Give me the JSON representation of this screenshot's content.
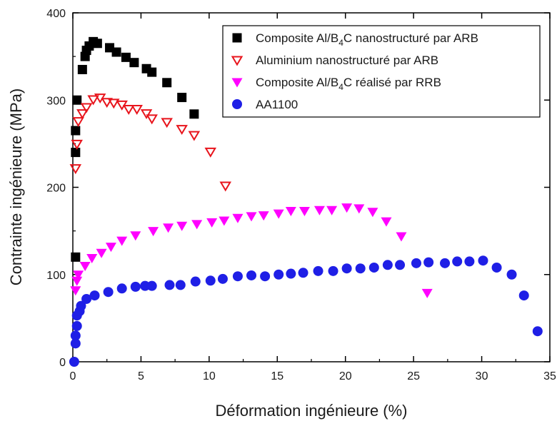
{
  "chart_data": {
    "type": "scatter",
    "xlabel": "Déformation ingénieure (%)",
    "ylabel": "Contrainte ingénieure (MPa)",
    "xlim": [
      0,
      35
    ],
    "ylim": [
      0,
      400
    ],
    "xticks": [
      0,
      5,
      10,
      15,
      20,
      25,
      30,
      35
    ],
    "yticks": [
      0,
      100,
      200,
      300,
      400
    ],
    "legend_position": "top-right",
    "series": [
      {
        "name": "Composite Al/B4C nanostructuré par ARB",
        "legend": {
          "pre": "Composite Al/B",
          "sub": "4",
          "post": "C nanostructuré par ARB"
        },
        "marker": "square",
        "color": "#000000",
        "points": [
          [
            0.2,
            120
          ],
          [
            0.2,
            240
          ],
          [
            0.2,
            265
          ],
          [
            0.3,
            300
          ],
          [
            0.7,
            335
          ],
          [
            0.9,
            350
          ],
          [
            1.0,
            357
          ],
          [
            1.2,
            362
          ],
          [
            1.5,
            367
          ],
          [
            1.8,
            365
          ],
          [
            2.7,
            360
          ],
          [
            3.2,
            355
          ],
          [
            3.9,
            349
          ],
          [
            4.5,
            343
          ],
          [
            5.4,
            336
          ],
          [
            5.8,
            332
          ],
          [
            6.9,
            320
          ],
          [
            8.0,
            303
          ],
          [
            8.9,
            284
          ]
        ]
      },
      {
        "name": "Aluminium nanostructuré par ARB",
        "legend": {
          "pre": "Aluminium nanostructuré par ARB",
          "sub": "",
          "post": ""
        },
        "marker": "triangle-down-open",
        "color": "#e8141c",
        "points": [
          [
            0.2,
            222
          ],
          [
            0.3,
            250
          ],
          [
            0.4,
            276
          ],
          [
            0.7,
            285
          ],
          [
            1.0,
            292
          ],
          [
            1.5,
            301
          ],
          [
            2.0,
            303
          ],
          [
            2.5,
            298
          ],
          [
            3.0,
            297
          ],
          [
            3.6,
            295
          ],
          [
            4.1,
            290
          ],
          [
            4.7,
            290
          ],
          [
            5.4,
            285
          ],
          [
            5.8,
            279
          ],
          [
            6.9,
            275
          ],
          [
            8.0,
            267
          ],
          [
            8.9,
            260
          ],
          [
            10.1,
            241
          ],
          [
            11.2,
            202
          ]
        ]
      },
      {
        "name": "Composite Al/B4C réalisé par RRB",
        "legend": {
          "pre": "Composite Al/B",
          "sub": "4",
          "post": "C réalisé par RRB"
        },
        "marker": "triangle-down",
        "color": "#ff00ff",
        "points": [
          [
            0.2,
            82
          ],
          [
            0.3,
            93
          ],
          [
            0.4,
            100
          ],
          [
            0.9,
            110
          ],
          [
            1.4,
            119
          ],
          [
            2.1,
            125
          ],
          [
            2.8,
            132
          ],
          [
            3.6,
            139
          ],
          [
            4.6,
            145
          ],
          [
            5.9,
            150
          ],
          [
            7.0,
            154
          ],
          [
            8.0,
            156
          ],
          [
            9.1,
            158
          ],
          [
            10.2,
            160
          ],
          [
            11.1,
            162
          ],
          [
            12.1,
            165
          ],
          [
            13.1,
            167
          ],
          [
            14.0,
            168
          ],
          [
            15.1,
            170
          ],
          [
            16.0,
            173
          ],
          [
            17.0,
            173
          ],
          [
            18.1,
            174
          ],
          [
            19.0,
            174
          ],
          [
            20.1,
            177
          ],
          [
            21.0,
            176
          ],
          [
            22.0,
            172
          ],
          [
            23.0,
            161
          ],
          [
            24.1,
            144
          ],
          [
            26.0,
            79
          ]
        ]
      },
      {
        "name": "AA1100",
        "legend": {
          "pre": "AA1100",
          "sub": "",
          "post": ""
        },
        "marker": "circle",
        "color": "#1f1fe6",
        "points": [
          [
            0.1,
            0
          ],
          [
            0.2,
            21
          ],
          [
            0.2,
            30
          ],
          [
            0.3,
            41
          ],
          [
            0.3,
            53
          ],
          [
            0.5,
            58
          ],
          [
            0.6,
            64
          ],
          [
            1.0,
            72
          ],
          [
            1.6,
            76
          ],
          [
            2.6,
            80
          ],
          [
            3.6,
            84
          ],
          [
            4.6,
            86
          ],
          [
            5.3,
            87
          ],
          [
            5.8,
            87
          ],
          [
            7.1,
            88
          ],
          [
            7.9,
            88
          ],
          [
            9.0,
            92
          ],
          [
            10.1,
            93
          ],
          [
            11.0,
            95
          ],
          [
            12.1,
            98
          ],
          [
            13.1,
            99
          ],
          [
            14.1,
            98
          ],
          [
            15.1,
            100
          ],
          [
            16.0,
            101
          ],
          [
            16.9,
            102
          ],
          [
            18.0,
            104
          ],
          [
            19.1,
            104
          ],
          [
            20.1,
            107
          ],
          [
            21.1,
            107
          ],
          [
            22.1,
            108
          ],
          [
            23.1,
            111
          ],
          [
            24.0,
            111
          ],
          [
            25.2,
            113
          ],
          [
            26.1,
            114
          ],
          [
            27.3,
            113
          ],
          [
            28.2,
            115
          ],
          [
            29.1,
            115
          ],
          [
            30.1,
            116
          ],
          [
            31.1,
            108
          ],
          [
            32.2,
            100
          ],
          [
            33.1,
            76
          ],
          [
            34.1,
            35
          ]
        ]
      }
    ]
  }
}
